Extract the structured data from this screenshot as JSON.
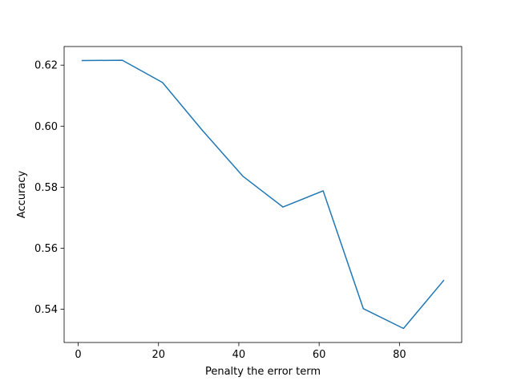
{
  "chart_data": {
    "type": "line",
    "title": "",
    "xlabel": "Penalty the error term",
    "ylabel": "Accuracy",
    "xlim": [
      -3.5,
      95.5
    ],
    "ylim": [
      0.5291,
      0.6261
    ],
    "xticks": [
      0,
      20,
      40,
      60,
      80
    ],
    "xtick_labels": [
      "0",
      "20",
      "40",
      "60",
      "80"
    ],
    "yticks": [
      0.54,
      0.56,
      0.58,
      0.6,
      0.62
    ],
    "ytick_labels": [
      "0.54",
      "0.56",
      "0.58",
      "0.60",
      "0.62"
    ],
    "grid": false,
    "series": [
      {
        "name": "Accuracy",
        "color": "#1f77b4",
        "x": [
          1,
          11,
          21,
          31,
          41,
          51,
          61,
          71,
          81,
          91
        ],
        "y": [
          0.6215,
          0.6216,
          0.6143,
          0.5985,
          0.5836,
          0.5735,
          0.5788,
          0.5402,
          0.5337,
          0.5494
        ]
      }
    ]
  }
}
